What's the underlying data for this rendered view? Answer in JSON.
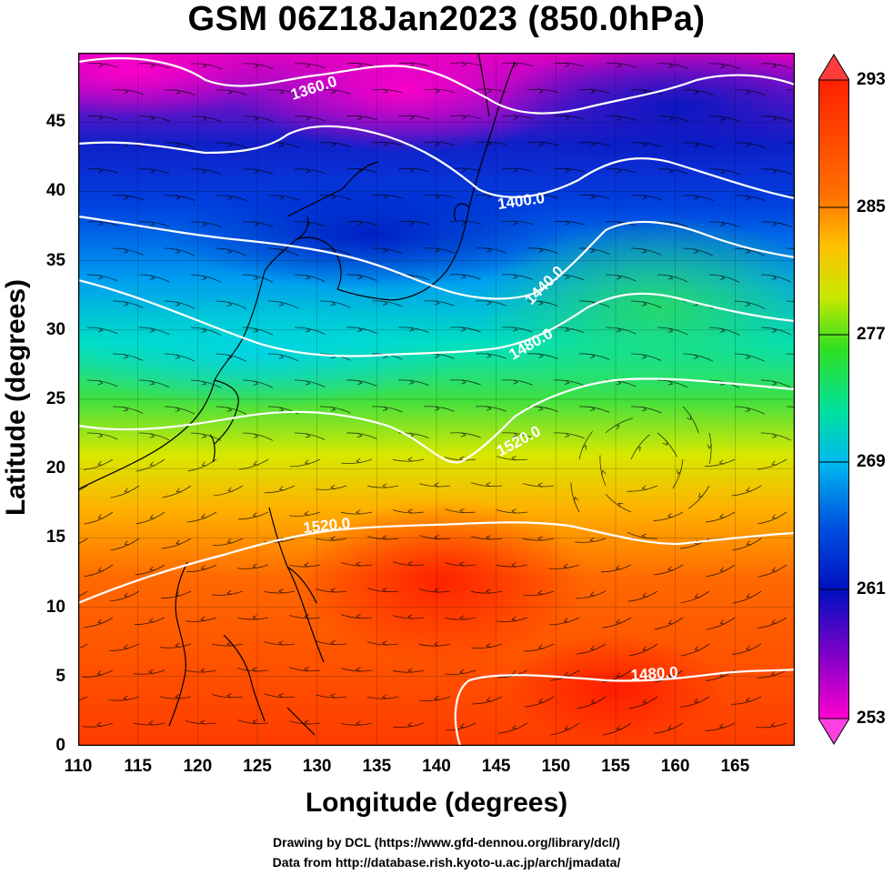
{
  "title": "GSM 06Z18Jan2023 (850.0hPa)",
  "map": {
    "xlabel": "Longitude (degrees)",
    "ylabel": "Latitude  (degrees)",
    "x_ticks": [
      "110",
      "115",
      "120",
      "125",
      "130",
      "135",
      "140",
      "145",
      "150",
      "155",
      "160",
      "165"
    ],
    "y_ticks": [
      "0",
      "5",
      "10",
      "15",
      "20",
      "25",
      "30",
      "35",
      "40",
      "45"
    ],
    "lon_range": [
      110,
      170
    ],
    "lat_range": [
      0,
      50
    ],
    "contour_labels": [
      "1360.0",
      "1400.0",
      "1440.0",
      "1480.0",
      "1520.0",
      "1520.0",
      "1480.0"
    ],
    "field": "temperature",
    "contours": "geopotential height",
    "overlay": "wind streamlines"
  },
  "colorbar": {
    "range": [
      253,
      293
    ],
    "ticks": [
      "293",
      "285",
      "277",
      "269",
      "261",
      "253"
    ],
    "colors": [
      "#ff00d0",
      "#9000c8",
      "#0020d0",
      "#0068f0",
      "#00d8f0",
      "#00e060",
      "#e8e800",
      "#ff9000",
      "#ff2000"
    ]
  },
  "credits": {
    "line1": "Drawing by DCL (https://www.gfd-dennou.org/library/dcl/)",
    "line2": "Data from http://database.rish.kyoto-u.ac.jp/arch/jmadata/"
  }
}
